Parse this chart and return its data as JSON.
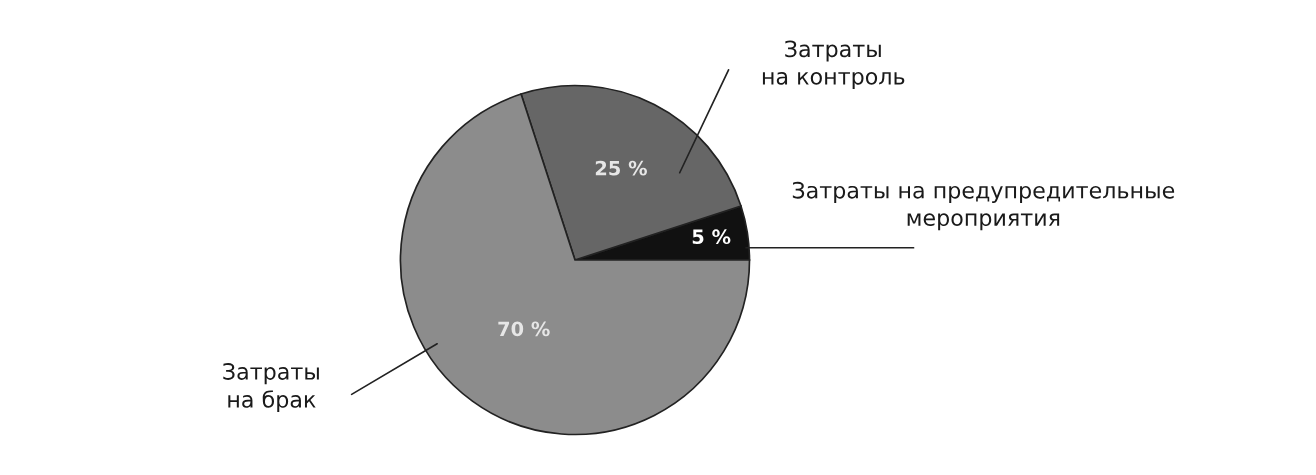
{
  "chart_data": {
    "type": "pie",
    "categories": [
      "Затраты на предупредительные\nмероприятия",
      "Затраты\nна контроль",
      "Затраты\nна брак"
    ],
    "values": [
      5,
      25,
      70
    ],
    "colors": [
      "#111111",
      "#666666",
      "#8c8c8c"
    ],
    "value_labels": [
      "5 %",
      "25 %",
      "70 %"
    ]
  }
}
